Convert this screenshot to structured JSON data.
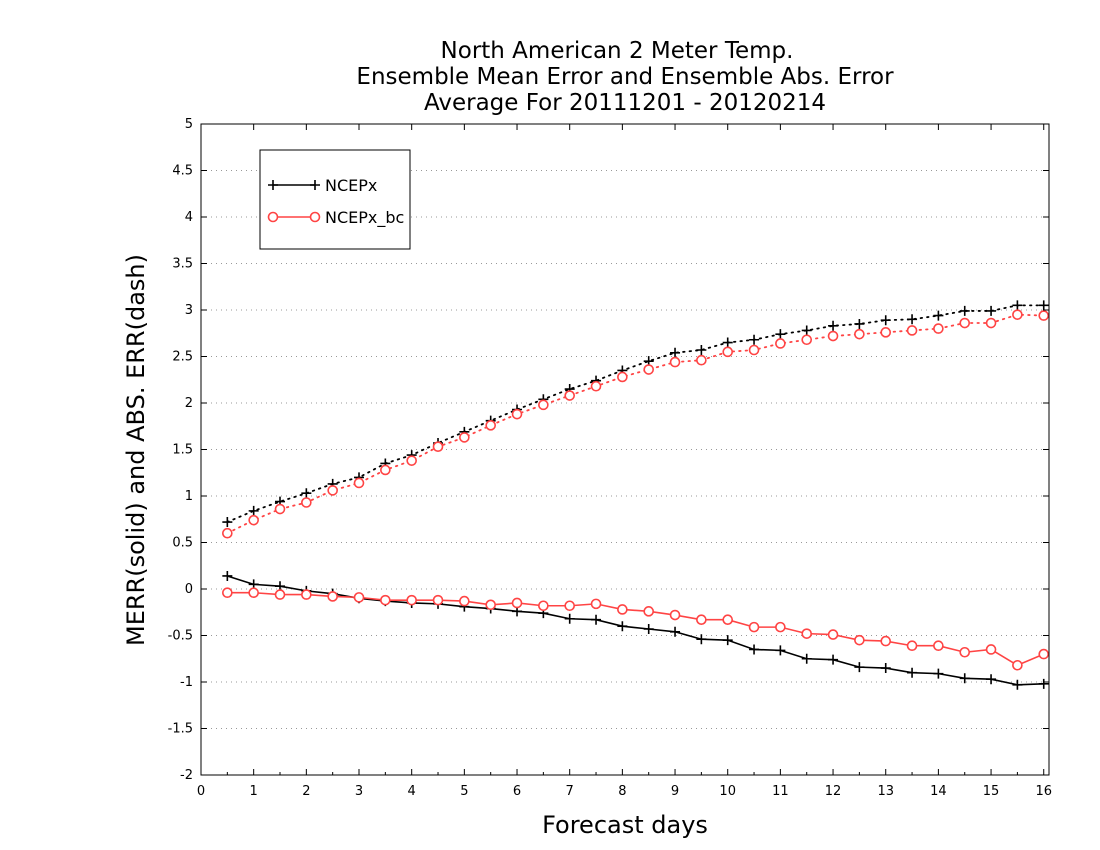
{
  "chart_data": {
    "type": "line",
    "title": [
      "North American 2 Meter Temp.",
      "Ensemble Mean Error and Ensemble Abs. Error",
      "Average For 20111201 - 20120214"
    ],
    "xlabel": "Forecast days",
    "ylabel": "MERR(solid) and ABS. ERR(dash)",
    "xlim": [
      0,
      16.1
    ],
    "ylim": [
      -2,
      5
    ],
    "x_ticks": [
      "0",
      "1",
      "2",
      "3",
      "4",
      "5",
      "6",
      "7",
      "8",
      "9",
      "10",
      "11",
      "12",
      "13",
      "14",
      "15",
      "16"
    ],
    "y_ticks": [
      "5",
      "4.5",
      "4",
      "3.5",
      "3",
      "2.5",
      "2",
      "1.5",
      "1",
      "0.5",
      "0",
      "-0.5",
      "-1",
      "-1.5",
      "-2"
    ],
    "y_tick_values": [
      5,
      4.5,
      4,
      3.5,
      3,
      2.5,
      2,
      1.5,
      1,
      0.5,
      0,
      -0.5,
      -1,
      -1.5,
      -2
    ],
    "grid": "horizontal dotted",
    "legend_placement": "top-left",
    "x": [
      0.5,
      1,
      1.5,
      2,
      2.5,
      3,
      3.5,
      4,
      4.5,
      5,
      5.5,
      6,
      6.5,
      7,
      7.5,
      8,
      8.5,
      9,
      9.5,
      10,
      10.5,
      11,
      11.5,
      12,
      12.5,
      13,
      13.5,
      14,
      14.5,
      15,
      15.5,
      16
    ],
    "series": [
      {
        "name": "NCEPx",
        "color": "#000000",
        "marker": "plus",
        "mean_error": [
          0.14,
          0.05,
          0.03,
          -0.02,
          -0.05,
          -0.1,
          -0.13,
          -0.15,
          -0.16,
          -0.19,
          -0.21,
          -0.24,
          -0.26,
          -0.32,
          -0.33,
          -0.4,
          -0.43,
          -0.46,
          -0.54,
          -0.55,
          -0.65,
          -0.66,
          -0.75,
          -0.76,
          -0.84,
          -0.85,
          -0.9,
          -0.91,
          -0.96,
          -0.97,
          -1.03,
          -1.02
        ],
        "abs_error": [
          0.72,
          0.84,
          0.94,
          1.03,
          1.13,
          1.2,
          1.35,
          1.44,
          1.57,
          1.69,
          1.81,
          1.93,
          2.04,
          2.15,
          2.24,
          2.35,
          2.45,
          2.54,
          2.57,
          2.65,
          2.68,
          2.74,
          2.78,
          2.83,
          2.85,
          2.89,
          2.9,
          2.94,
          2.99,
          2.99,
          3.05,
          3.05
        ]
      },
      {
        "name": "NCEPx_bc",
        "color": "#ff4444",
        "marker": "circle",
        "mean_error": [
          -0.04,
          -0.04,
          -0.06,
          -0.06,
          -0.08,
          -0.09,
          -0.12,
          -0.12,
          -0.12,
          -0.13,
          -0.17,
          -0.15,
          -0.18,
          -0.18,
          -0.16,
          -0.22,
          -0.24,
          -0.28,
          -0.33,
          -0.33,
          -0.41,
          -0.41,
          -0.48,
          -0.49,
          -0.55,
          -0.56,
          -0.61,
          -0.61,
          -0.68,
          -0.65,
          -0.82,
          -0.7
        ],
        "abs_error": [
          0.6,
          0.74,
          0.86,
          0.93,
          1.06,
          1.14,
          1.28,
          1.38,
          1.53,
          1.63,
          1.76,
          1.88,
          1.98,
          2.08,
          2.18,
          2.28,
          2.36,
          2.44,
          2.46,
          2.55,
          2.57,
          2.64,
          2.68,
          2.72,
          2.74,
          2.76,
          2.78,
          2.8,
          2.86,
          2.86,
          2.95,
          2.94
        ]
      }
    ]
  }
}
